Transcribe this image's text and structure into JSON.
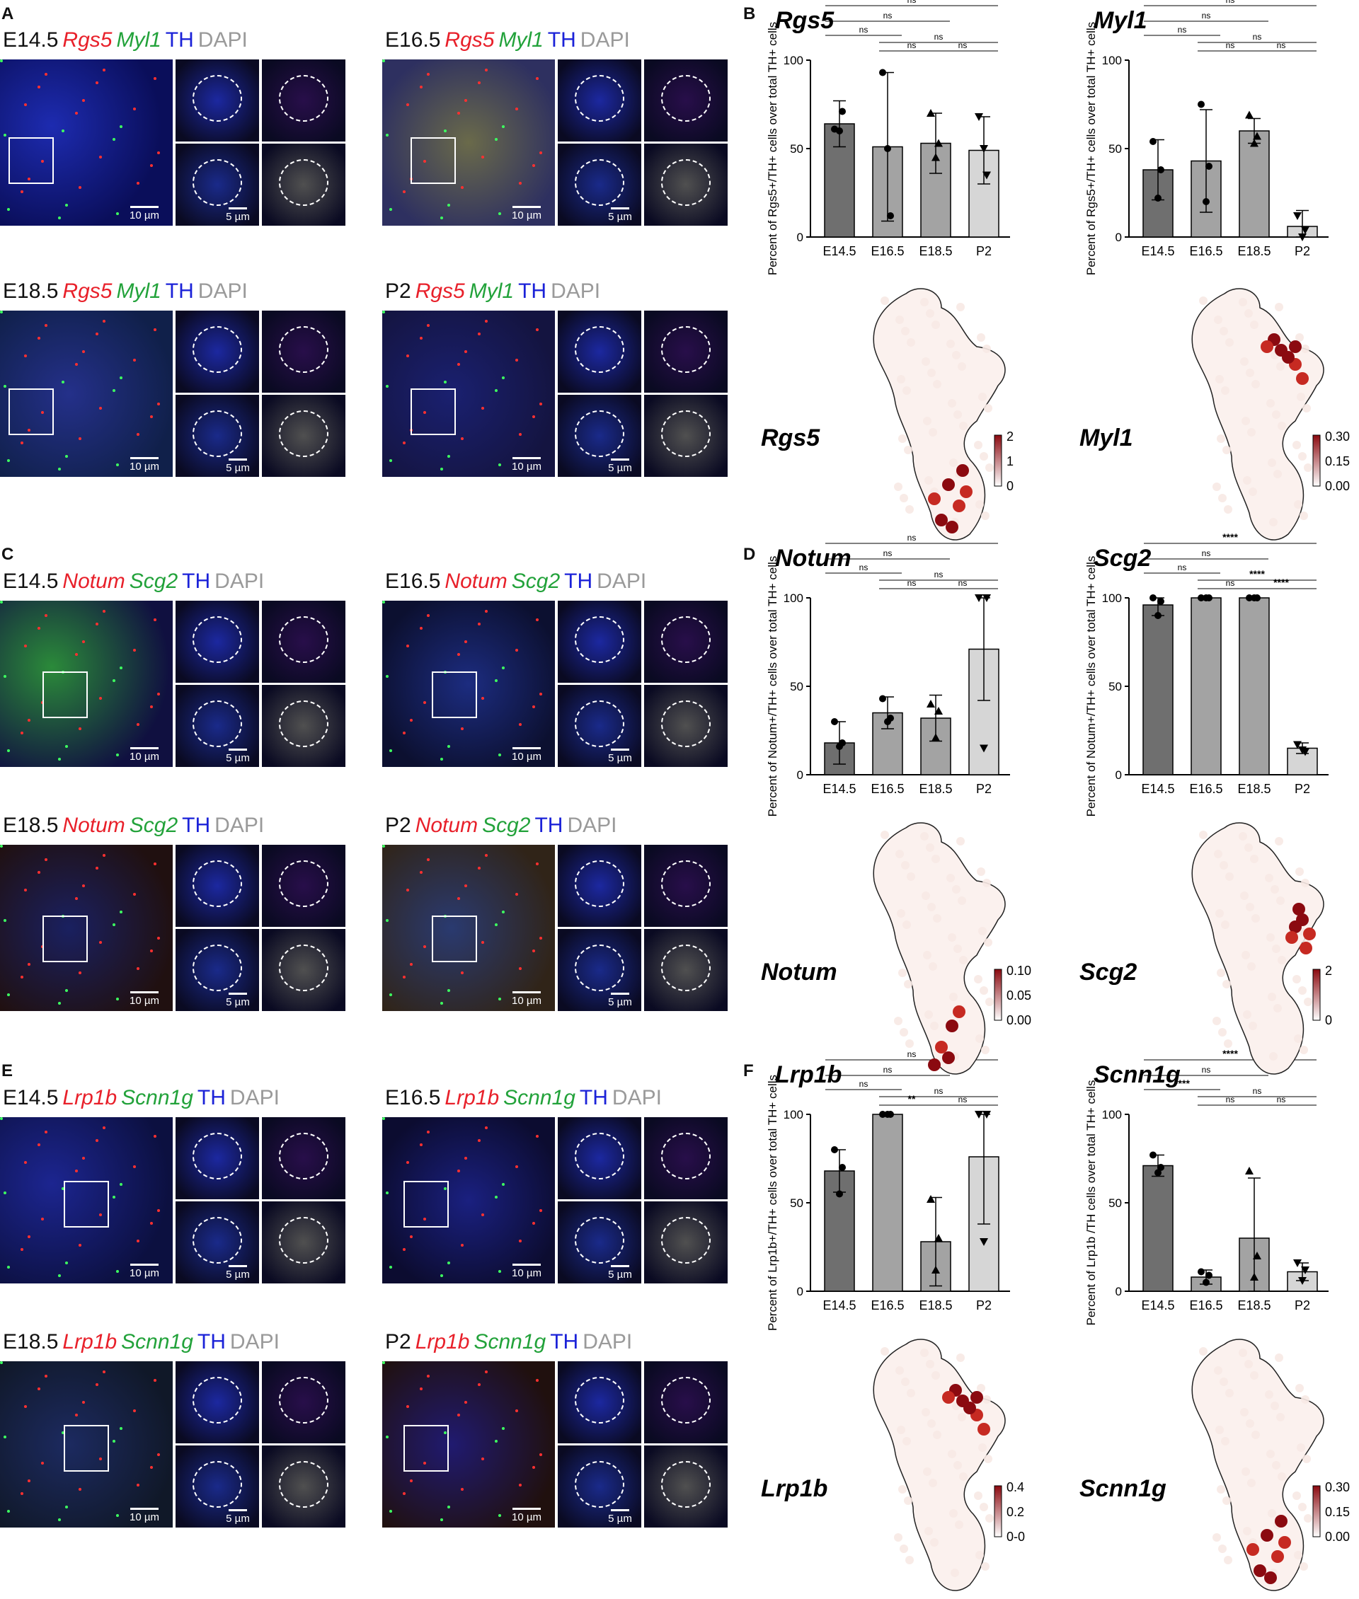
{
  "panels": {
    "A": {
      "letter": "A"
    },
    "B": {
      "letter": "B"
    },
    "C": {
      "letter": "C"
    },
    "D": {
      "letter": "D"
    },
    "E": {
      "letter": "E"
    },
    "F": {
      "letter": "F"
    }
  },
  "stain_sets": [
    {
      "gene1": "Rgs5",
      "gene2": "Myl1",
      "th": "TH",
      "dapi": "DAPI"
    },
    {
      "gene1": "Notum",
      "gene2": "Scg2",
      "th": "TH",
      "dapi": "DAPI"
    },
    {
      "gene1": "Lrp1b",
      "gene2": "Scnn1g",
      "th": "TH",
      "dapi": "DAPI"
    }
  ],
  "stages": [
    "E14.5",
    "E16.5",
    "E18.5",
    "P2"
  ],
  "scale": {
    "large": "10 µm",
    "small": "5 µm"
  },
  "colors": {
    "bar_dark": "#6f6f6f",
    "bar_mid": "#a3a3a3",
    "bar_light": "#d6d6d6",
    "umap_high": "#8b0a10",
    "umap_low": "#f7e9e4"
  },
  "chart_data": [
    {
      "type": "bar",
      "title": "Rgs5",
      "ylabel": "Percent of Rgs5+/TH+ cells over total TH+ cells",
      "categories": [
        "E14.5",
        "E16.5",
        "E18.5",
        "P2"
      ],
      "values": [
        64,
        51,
        53,
        49
      ],
      "err": [
        13,
        42,
        17,
        19
      ],
      "points": [
        [
          61,
          71,
          60
        ],
        [
          93,
          12,
          50
        ],
        [
          70,
          53,
          45
        ],
        [
          68,
          35,
          50
        ]
      ],
      "markers": [
        "circle",
        "circle",
        "triangle",
        "triangledown"
      ],
      "ylim": [
        0,
        100
      ],
      "yticks": [
        "0",
        "50",
        "100"
      ],
      "sig": [
        [
          "E14.5",
          "E16.5",
          "ns"
        ],
        [
          "E14.5",
          "E18.5",
          "ns"
        ],
        [
          "E14.5",
          "P2",
          "ns"
        ],
        [
          "E16.5",
          "E18.5",
          "ns"
        ],
        [
          "E16.5",
          "P2",
          "ns"
        ],
        [
          "E18.5",
          "P2",
          "ns"
        ]
      ]
    },
    {
      "type": "bar",
      "title": "Myl1",
      "ylabel": "Percent of Rgs5+/TH+ cells over total TH+ cells",
      "categories": [
        "E14.5",
        "E16.5",
        "E18.5",
        "P2"
      ],
      "values": [
        38,
        43,
        60,
        6
      ],
      "err": [
        17,
        29,
        7,
        9
      ],
      "points": [
        [
          54,
          38,
          22
        ],
        [
          75,
          40,
          20
        ],
        [
          69,
          57,
          53
        ],
        [
          12,
          4,
          0
        ]
      ],
      "markers": [
        "circle",
        "circle",
        "triangle",
        "triangledown"
      ],
      "ylim": [
        0,
        100
      ],
      "yticks": [
        "0",
        "50",
        "100"
      ],
      "sig": [
        [
          "E14.5",
          "E16.5",
          "ns"
        ],
        [
          "E14.5",
          "E18.5",
          "ns"
        ],
        [
          "E14.5",
          "P2",
          "ns"
        ],
        [
          "E16.5",
          "E18.5",
          "ns"
        ],
        [
          "E16.5",
          "P2",
          "ns"
        ],
        [
          "E18.5",
          "P2",
          "ns"
        ]
      ]
    },
    {
      "type": "bar",
      "title": "Notum",
      "ylabel": "Percent of Notum+/TH+ cells over total TH+ cells",
      "categories": [
        "E14.5",
        "E16.5",
        "E18.5",
        "P2"
      ],
      "values": [
        18,
        35,
        32,
        71
      ],
      "err": [
        12,
        9,
        13,
        29
      ],
      "points": [
        [
          30,
          18,
          16
        ],
        [
          43,
          32,
          30
        ],
        [
          40,
          36,
          21
        ],
        [
          100,
          100,
          15
        ]
      ],
      "markers": [
        "circle",
        "circle",
        "triangle",
        "triangledown"
      ],
      "ylim": [
        0,
        100
      ],
      "yticks": [
        "0",
        "50",
        "100"
      ],
      "sig": [
        [
          "E14.5",
          "E16.5",
          "ns"
        ],
        [
          "E14.5",
          "E18.5",
          "ns"
        ],
        [
          "E14.5",
          "P2",
          "ns"
        ],
        [
          "E16.5",
          "E18.5",
          "ns"
        ],
        [
          "E16.5",
          "P2",
          "ns"
        ],
        [
          "E18.5",
          "P2",
          "ns"
        ]
      ]
    },
    {
      "type": "bar",
      "title": "Scg2",
      "ylabel": "Percent of Notum+/TH+ cells over total TH+ cells",
      "categories": [
        "E14.5",
        "E16.5",
        "E18.5",
        "P2"
      ],
      "values": [
        96,
        100,
        100,
        15
      ],
      "err": [
        6,
        0,
        0,
        3
      ],
      "points": [
        [
          100,
          98,
          90
        ],
        [
          100,
          100,
          100
        ],
        [
          100,
          100,
          100
        ],
        [
          17,
          13,
          14
        ]
      ],
      "markers": [
        "circle",
        "circle",
        "circle",
        "triangledown"
      ],
      "ylim": [
        0,
        100
      ],
      "yticks": [
        "0",
        "50",
        "100"
      ],
      "sig": [
        [
          "E14.5",
          "E16.5",
          "ns"
        ],
        [
          "E14.5",
          "E18.5",
          "ns"
        ],
        [
          "E14.5",
          "P2",
          "****"
        ],
        [
          "E16.5",
          "E18.5",
          "ns"
        ],
        [
          "E16.5",
          "P2",
          "****"
        ],
        [
          "E18.5",
          "P2",
          "****"
        ]
      ]
    },
    {
      "type": "bar",
      "title": "Lrp1b",
      "ylabel": "Percent of Lrp1b+/TH+ cells over total TH+ cells",
      "categories": [
        "E14.5",
        "E16.5",
        "E18.5",
        "P2"
      ],
      "values": [
        68,
        100,
        28,
        76
      ],
      "err": [
        12,
        0,
        25,
        38
      ],
      "points": [
        [
          80,
          70,
          55
        ],
        [
          100,
          100,
          100
        ],
        [
          52,
          30,
          12
        ],
        [
          100,
          100,
          28
        ]
      ],
      "markers": [
        "circle",
        "circle",
        "triangle",
        "triangledown"
      ],
      "ylim": [
        0,
        100
      ],
      "yticks": [
        "0",
        "50",
        "100"
      ],
      "sig": [
        [
          "E14.5",
          "E16.5",
          "ns"
        ],
        [
          "E14.5",
          "E18.5",
          "ns"
        ],
        [
          "E14.5",
          "P2",
          "ns"
        ],
        [
          "E16.5",
          "E18.5",
          "**"
        ],
        [
          "E16.5",
          "P2",
          "ns"
        ],
        [
          "E18.5",
          "P2",
          "ns"
        ]
      ]
    },
    {
      "type": "bar",
      "title": "Scnn1g",
      "ylabel": "Percent of Lrp1b /TH cells over total TH+ cells",
      "categories": [
        "E14.5",
        "E16.5",
        "E18.5",
        "P2"
      ],
      "values": [
        71,
        8,
        30,
        11
      ],
      "err": [
        6,
        4,
        34,
        5
      ],
      "points": [
        [
          77,
          70,
          67
        ],
        [
          11,
          9,
          5
        ],
        [
          68,
          20,
          8
        ],
        [
          16,
          12,
          6
        ]
      ],
      "markers": [
        "circle",
        "circle",
        "triangle",
        "triangledown"
      ],
      "ylim": [
        0,
        100
      ],
      "yticks": [
        "0",
        "50",
        "100"
      ],
      "sig": [
        [
          "E14.5",
          "E16.5",
          "****"
        ],
        [
          "E14.5",
          "E18.5",
          "ns"
        ],
        [
          "E14.5",
          "P2",
          "****"
        ],
        [
          "E16.5",
          "E18.5",
          "ns"
        ],
        [
          "E16.5",
          "P2",
          "ns"
        ],
        [
          "E18.5",
          "P2",
          "ns"
        ]
      ]
    }
  ],
  "umaps": [
    {
      "gene": "Rgs5",
      "scale": [
        "2",
        "1",
        "0"
      ],
      "hot": "bottom"
    },
    {
      "gene": "Myl1",
      "scale": [
        "0.30",
        "0.15",
        "0.00"
      ],
      "hot": "top"
    },
    {
      "gene": "Notum",
      "scale": [
        "0.10",
        "0.05",
        "0.00"
      ],
      "hot": "tip"
    },
    {
      "gene": "Scg2",
      "scale": [
        "2",
        "0"
      ],
      "hot": "right"
    },
    {
      "gene": "Lrp1b",
      "scale": [
        "0.4",
        "0.2",
        "0-0"
      ],
      "hot": "top"
    },
    {
      "gene": "Scnn1g",
      "scale": [
        "0.30",
        "0.15",
        "0.00"
      ],
      "hot": "bottom"
    }
  ]
}
